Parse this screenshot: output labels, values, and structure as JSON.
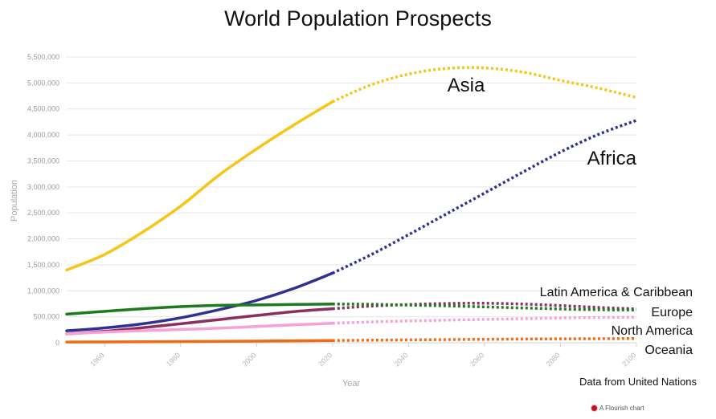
{
  "title": "World Population Prospects",
  "source_note": "Data from United Nations",
  "credit": "A Flourish chart",
  "chart_data": {
    "type": "line",
    "title": "World Population Prospects",
    "xlabel": "Year",
    "ylabel": "Population",
    "xlim": [
      1950,
      2100
    ],
    "ylim": [
      0,
      5500000
    ],
    "x_ticks": [
      1960,
      1980,
      2000,
      2020,
      2040,
      2060,
      2080,
      2100
    ],
    "y_ticks": [
      0,
      500000,
      1000000,
      1500000,
      2000000,
      2500000,
      3000000,
      3500000,
      4000000,
      4500000,
      5000000,
      5500000
    ],
    "y_tick_labels": [
      "0",
      "500,000",
      "1,000,000",
      "1,500,000",
      "2,000,000",
      "2,500,000",
      "3,000,000",
      "3,500,000",
      "4,000,000",
      "4,500,000",
      "5,000,000",
      "5,500,000"
    ],
    "grid": true,
    "projection_start": 2020,
    "projection_style": "dotted",
    "x": [
      1950,
      1960,
      1970,
      1980,
      1990,
      2000,
      2010,
      2020,
      2030,
      2040,
      2050,
      2060,
      2070,
      2080,
      2090,
      2100
    ],
    "series": [
      {
        "name": "Asia",
        "color": "#f5c518",
        "label_size": 24,
        "values": [
          1400000,
          1700000,
          2130000,
          2630000,
          3220000,
          3730000,
          4200000,
          4640000,
          4960000,
          5170000,
          5280000,
          5290000,
          5210000,
          5050000,
          4900000,
          4720000
        ]
      },
      {
        "name": "Africa",
        "color": "#2e3192",
        "label_size": 24,
        "values": [
          230000,
          285000,
          365000,
          480000,
          635000,
          815000,
          1050000,
          1340000,
          1690000,
          2080000,
          2480000,
          2880000,
          3280000,
          3670000,
          4010000,
          4280000
        ]
      },
      {
        "name": "Latin America & Caribbean",
        "color": "#8b2f5e",
        "label_size": 16,
        "values": [
          170000,
          220000,
          290000,
          365000,
          445000,
          525000,
          600000,
          655000,
          705000,
          735000,
          755000,
          760000,
          745000,
          715000,
          680000,
          650000
        ]
      },
      {
        "name": "Europe",
        "color": "#1e7a1e",
        "label_size": 16,
        "values": [
          550000,
          605000,
          655000,
          695000,
          720000,
          728000,
          737000,
          745000,
          740000,
          725000,
          710000,
          690000,
          670000,
          650000,
          635000,
          630000
        ]
      },
      {
        "name": "North America",
        "color": "#f7a1d6",
        "label_size": 16,
        "values": [
          172000,
          205000,
          232000,
          255000,
          280000,
          313000,
          345000,
          375000,
          400000,
          420000,
          435000,
          450000,
          463000,
          477000,
          487000,
          492000
        ]
      },
      {
        "name": "Oceania",
        "color": "#f26a12",
        "label_size": 16,
        "values": [
          13000,
          16000,
          20000,
          23000,
          27000,
          31000,
          37000,
          43000,
          49000,
          55000,
          61000,
          66000,
          71000,
          75000,
          78000,
          82000
        ]
      }
    ]
  }
}
